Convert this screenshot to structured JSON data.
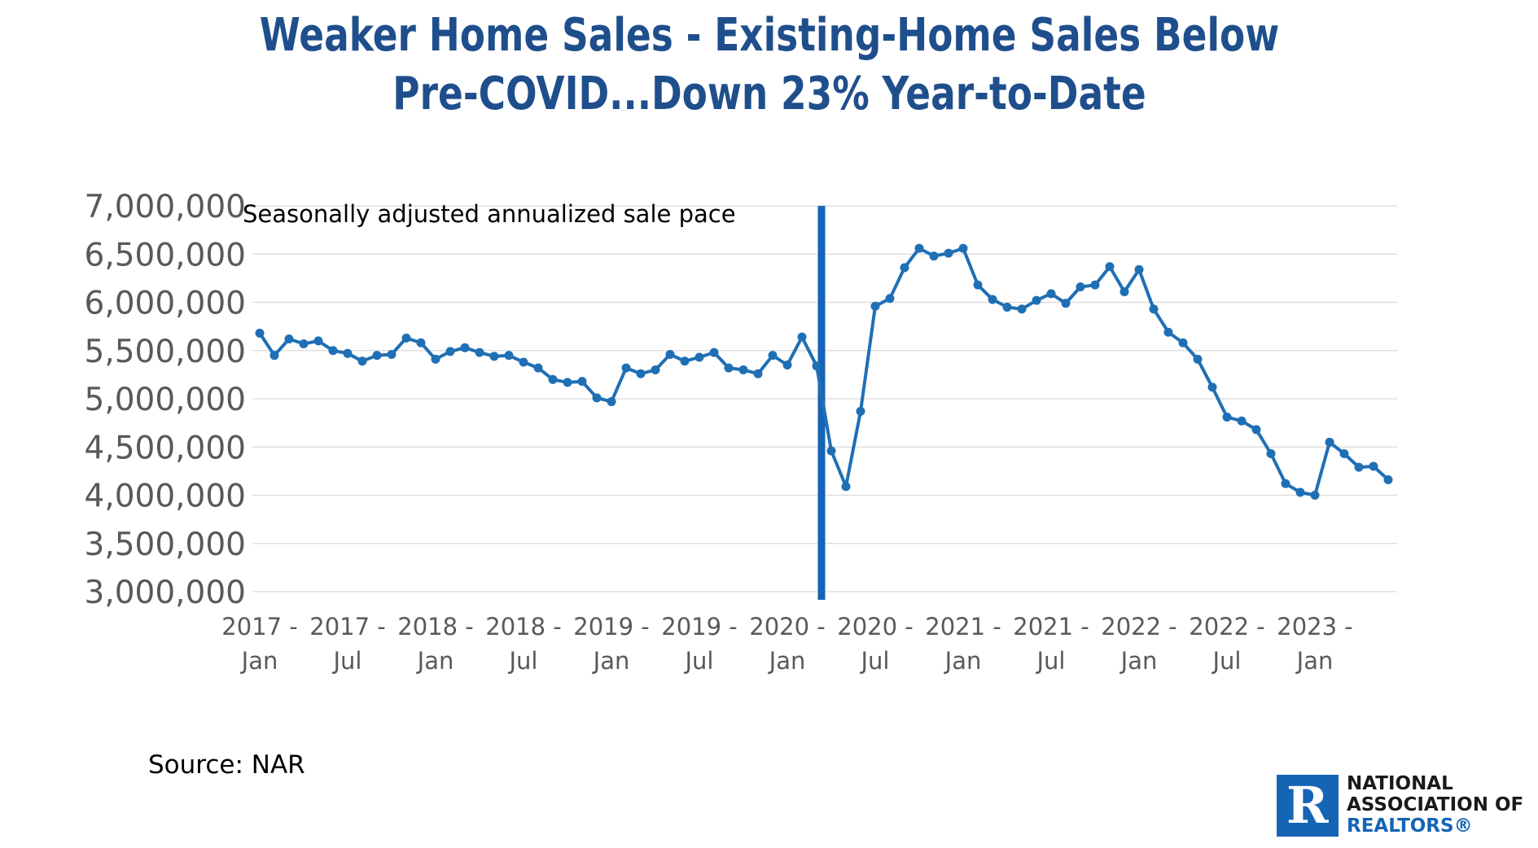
{
  "title": {
    "line1": "Weaker Home Sales - Existing-Home Sales Below",
    "line2": "Pre-COVID...Down 23% Year-to-Date"
  },
  "source": "Source: NAR",
  "logo": {
    "mark": "R",
    "line1": "NATIONAL",
    "line2": "ASSOCIATION OF",
    "line3": "REALTORS®"
  },
  "colors": {
    "title": "#1f4e8c",
    "series": "#1f6fb5",
    "marker_line": "#1565b5",
    "gridline": "#d9d9d9",
    "tick_text": "#595959"
  },
  "chart_data": {
    "type": "line",
    "annotation": "Seasonally adjusted annualized sale pace",
    "ylim": [
      3000000,
      7000000
    ],
    "yticks": [
      "3,000,000",
      "3,500,000",
      "4,000,000",
      "4,500,000",
      "5,000,000",
      "5,500,000",
      "6,000,000",
      "6,500,000",
      "7,000,000"
    ],
    "ytick_values": [
      3000000,
      3500000,
      4000000,
      4500000,
      5000000,
      5500000,
      6000000,
      6500000,
      7000000
    ],
    "grid": true,
    "x_start": "2017-01",
    "xtick_labels": [
      {
        "month": "2017-01",
        "line1": "2017 -",
        "line2": "Jan"
      },
      {
        "month": "2017-07",
        "line1": "2017 -",
        "line2": "Jul"
      },
      {
        "month": "2018-01",
        "line1": "2018 -",
        "line2": "Jan"
      },
      {
        "month": "2018-07",
        "line1": "2018 -",
        "line2": "Jul"
      },
      {
        "month": "2019-01",
        "line1": "2019 -",
        "line2": "Jan"
      },
      {
        "month": "2019-07",
        "line1": "2019 -",
        "line2": "Jul"
      },
      {
        "month": "2020-01",
        "line1": "2020 -",
        "line2": "Jan"
      },
      {
        "month": "2020-07",
        "line1": "2020 -",
        "line2": "Jul"
      },
      {
        "month": "2021-01",
        "line1": "2021 -",
        "line2": "Jan"
      },
      {
        "month": "2021-07",
        "line1": "2021 -",
        "line2": "Jul"
      },
      {
        "month": "2022-01",
        "line1": "2022 -",
        "line2": "Jan"
      },
      {
        "month": "2022-07",
        "line1": "2022 -",
        "line2": "Jul"
      },
      {
        "month": "2023-01",
        "line1": "2023 -",
        "line2": "Jan"
      }
    ],
    "vertical_marker": "2020-03",
    "series": [
      {
        "values": [
          5680000,
          5450000,
          5620000,
          5570000,
          5600000,
          5500000,
          5470000,
          5390000,
          5450000,
          5460000,
          5630000,
          5580000,
          5410000,
          5490000,
          5530000,
          5480000,
          5440000,
          5450000,
          5380000,
          5320000,
          5200000,
          5170000,
          5180000,
          5010000,
          4970000,
          5320000,
          5260000,
          5300000,
          5460000,
          5390000,
          5430000,
          5480000,
          5320000,
          5300000,
          5260000,
          5450000,
          5350000,
          5640000,
          5340000,
          4460000,
          4090000,
          4870000,
          5960000,
          6040000,
          6360000,
          6560000,
          6480000,
          6510000,
          6560000,
          6180000,
          6030000,
          5950000,
          5930000,
          6020000,
          6090000,
          5990000,
          6160000,
          6180000,
          6370000,
          6110000,
          6340000,
          5930000,
          5690000,
          5580000,
          5410000,
          5120000,
          4810000,
          4770000,
          4680000,
          4430000,
          4120000,
          4030000,
          4000000,
          4550000,
          4430000,
          4290000,
          4300000,
          4160000
        ]
      }
    ]
  }
}
